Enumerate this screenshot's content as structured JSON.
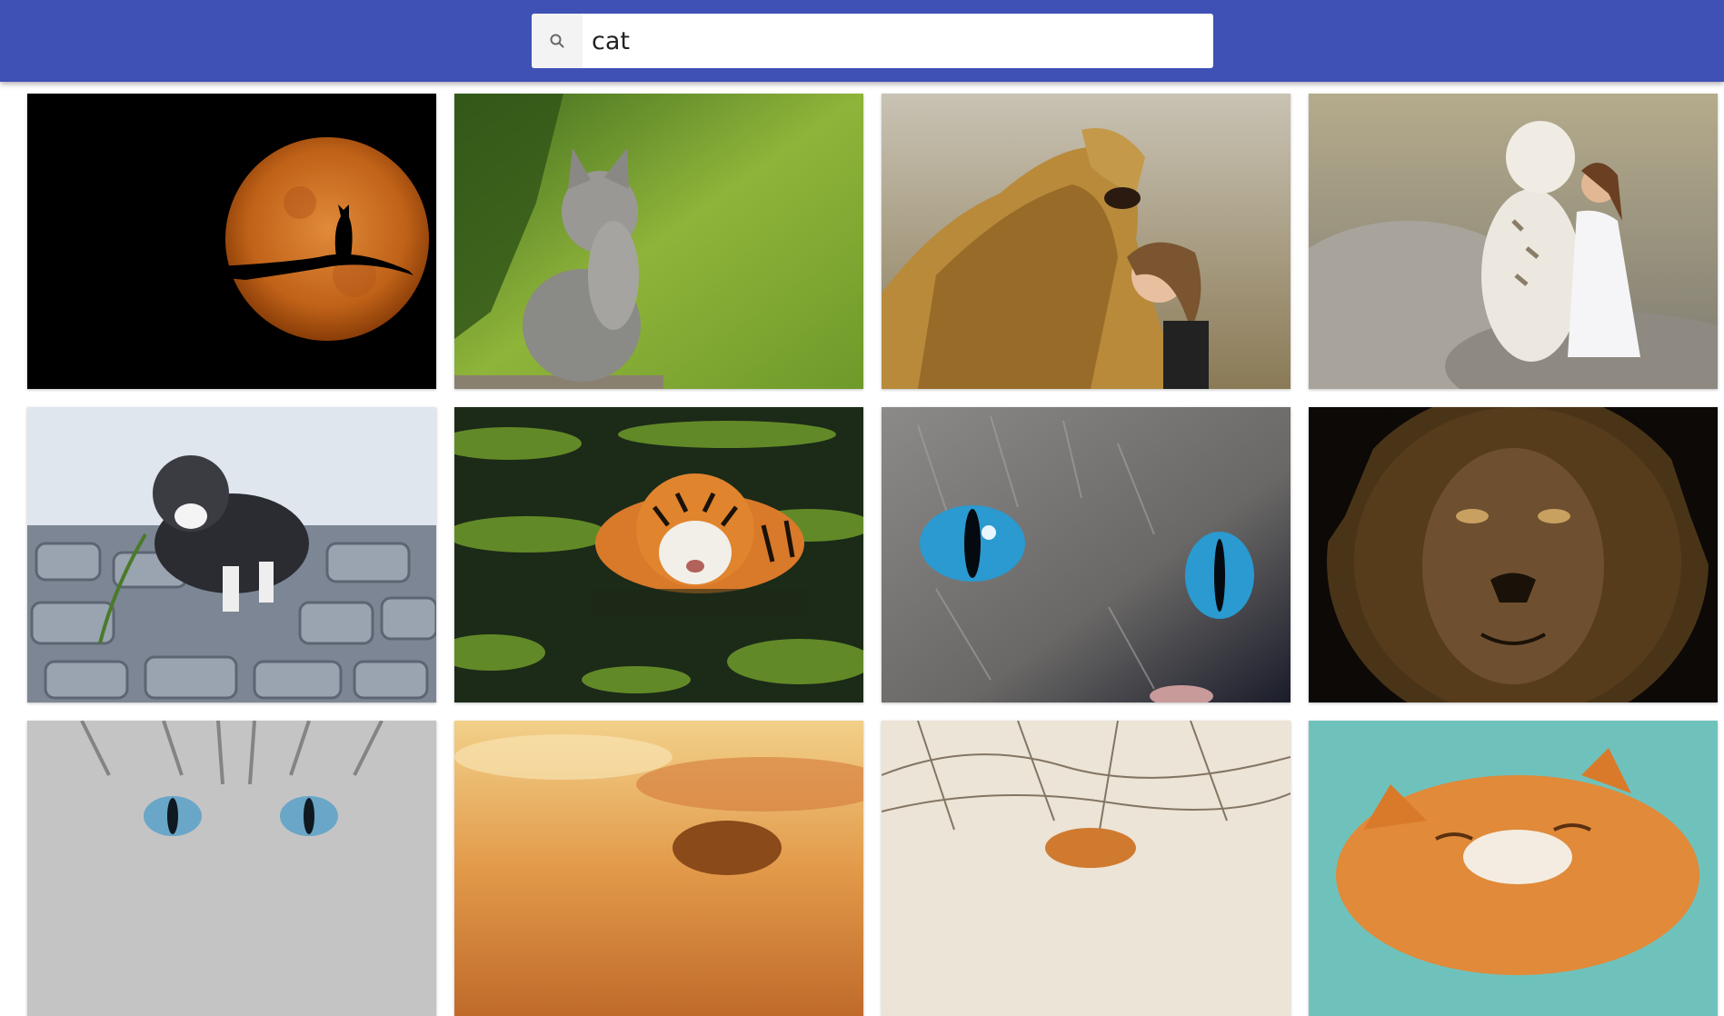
{
  "search": {
    "value": "cat",
    "icon": "search-icon"
  },
  "accent": "#3f51b5",
  "results": [
    {
      "subject": "cat-silhouette-moon"
    },
    {
      "subject": "grey-kitten-grass"
    },
    {
      "subject": "lion-girl"
    },
    {
      "subject": "white-tiger-woman"
    },
    {
      "subject": "kitten-cobblestones"
    },
    {
      "subject": "tiger-in-water"
    },
    {
      "subject": "cat-blue-eyes"
    },
    {
      "subject": "lion-portrait"
    },
    {
      "subject": "grey-cat-closeup"
    },
    {
      "subject": "lion-sunset"
    },
    {
      "subject": "tiger-snow"
    },
    {
      "subject": "orange-cat"
    }
  ]
}
